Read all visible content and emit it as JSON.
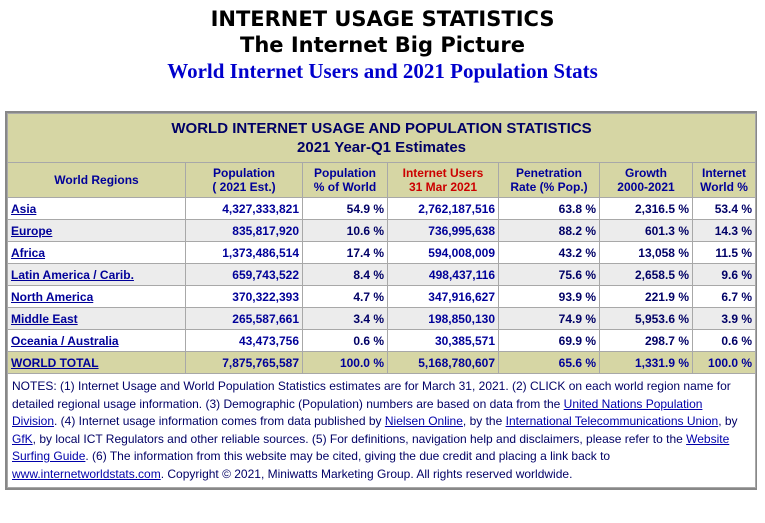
{
  "header": {
    "line1": "INTERNET USAGE STATISTICS",
    "line2": "The Internet Big Picture",
    "line3": "World Internet Users and 2021 Population Stats"
  },
  "table": {
    "title": "WORLD INTERNET USAGE AND POPULATION STATISTICS",
    "subtitle": "2021 Year-Q1 Estimates",
    "columns": [
      {
        "l1": "World Regions",
        "l2": ""
      },
      {
        "l1": "Population",
        "l2": "( 2021 Est.)"
      },
      {
        "l1": "Population",
        "l2": "% of World"
      },
      {
        "l1": "Internet Users",
        "l2": "31 Mar 2021"
      },
      {
        "l1": "Penetration",
        "l2": "Rate (% Pop.)"
      },
      {
        "l1": "Growth",
        "l2": "2000-2021"
      },
      {
        "l1": "Internet",
        "l2": "World %"
      }
    ],
    "rows": [
      {
        "region": "Asia",
        "population": "4,327,333,821",
        "pct_world": "54.9 %",
        "users": "2,762,187,516",
        "penetration": "63.8 %",
        "growth": "2,316.5 %",
        "world_pct": "53.4 %"
      },
      {
        "region": "Europe",
        "population": "835,817,920",
        "pct_world": "10.6 %",
        "users": "736,995,638",
        "penetration": "88.2 %",
        "growth": "601.3 %",
        "world_pct": "14.3 %"
      },
      {
        "region": "Africa",
        "population": "1,373,486,514",
        "pct_world": "17.4 %",
        "users": "594,008,009",
        "penetration": "43.2 %",
        "growth": "13,058 %",
        "world_pct": "11.5 %"
      },
      {
        "region": "Latin America / Carib.",
        "population": "659,743,522",
        "pct_world": "8.4 %",
        "users": "498,437,116",
        "penetration": "75.6 %",
        "growth": "2,658.5 %",
        "world_pct": "9.6 %"
      },
      {
        "region": "North America",
        "population": "370,322,393",
        "pct_world": "4.7 %",
        "users": "347,916,627",
        "penetration": "93.9 %",
        "growth": "221.9 %",
        "world_pct": "6.7 %"
      },
      {
        "region": "Middle East",
        "population": "265,587,661",
        "pct_world": "3.4 %",
        "users": "198,850,130",
        "penetration": "74.9 %",
        "growth": "5,953.6 %",
        "world_pct": "3.9 %"
      },
      {
        "region": "Oceania / Australia",
        "population": "43,473,756",
        "pct_world": "0.6 %",
        "users": "30,385,571",
        "penetration": "69.9 %",
        "growth": "298.7 %",
        "world_pct": "0.6 %"
      }
    ],
    "total": {
      "region": "WORLD TOTAL",
      "population": "7,875,765,587",
      "pct_world": "100.0 %",
      "users": "5,168,780,607",
      "penetration": "65.6 %",
      "growth": "1,331.9 %",
      "world_pct": "100.0 %"
    }
  },
  "notes": {
    "t1": "NOTES: (1) Internet Usage and World Population Statistics estimates are for March 31, 2021. (2) CLICK on each world region name for detailed regional usage information. (3) Demographic (Population) numbers are based on data from the ",
    "link_un": "United Nations Population Division",
    "t2": ". (4) Internet usage information comes from data published by ",
    "link_nielsen": "Nielsen Online",
    "t3": ", by the ",
    "link_itu": "International Telecommunications Union",
    "t4": ", by ",
    "link_gfk": "GfK",
    "t5": ", by local ICT Regulators and other reliable sources. (5) For definitions, navigation help and disclaimers, please refer to the ",
    "link_guide": "Website Surfing Guide",
    "t6": ". (6) The information from this website may be cited, giving the due credit and placing a link back to ",
    "link_site": "www.internetworldstats.com",
    "t7": ". Copyright © 2021, Miniwatts Marketing Group. All rights reserved worldwide."
  }
}
